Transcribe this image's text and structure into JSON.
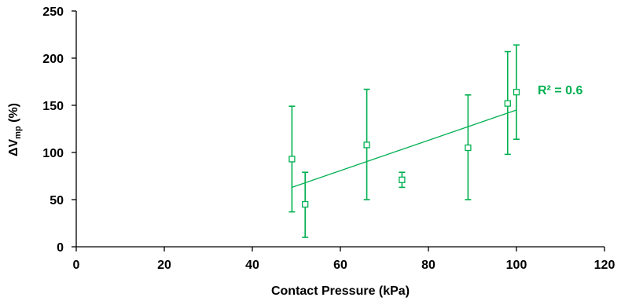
{
  "chart_data": {
    "type": "scatter",
    "xlabel": "Contact Pressure (kPa)",
    "ylabel": {
      "main": "ΔV",
      "sub": "mp",
      "suffix": " (%)"
    },
    "xlim": [
      0,
      120
    ],
    "ylim": [
      0,
      250
    ],
    "x_ticks": [
      "0",
      "20",
      "40",
      "60",
      "80",
      "100",
      "120"
    ],
    "y_ticks": [
      "0",
      "50",
      "100",
      "150",
      "200",
      "250"
    ],
    "grid": false,
    "legend": "none",
    "color": "#00b050",
    "marker": "open-square",
    "points": [
      {
        "x": 49,
        "y": 93,
        "err_low": 37,
        "err_high": 149
      },
      {
        "x": 52,
        "y": 45,
        "err_low": 10,
        "err_high": 79
      },
      {
        "x": 66,
        "y": 108,
        "err_low": 50,
        "err_high": 167
      },
      {
        "x": 74,
        "y": 71,
        "err_low": 63,
        "err_high": 79
      },
      {
        "x": 89,
        "y": 105,
        "err_low": 50,
        "err_high": 161
      },
      {
        "x": 98,
        "y": 152,
        "err_low": 98,
        "err_high": 207
      },
      {
        "x": 100,
        "y": 164,
        "err_low": 114,
        "err_high": 214
      }
    ],
    "trendline": {
      "type": "linear",
      "x_start": 49,
      "y_start": 63,
      "x_end": 100,
      "y_end": 145
    },
    "annotation": "R² = 0.6"
  }
}
